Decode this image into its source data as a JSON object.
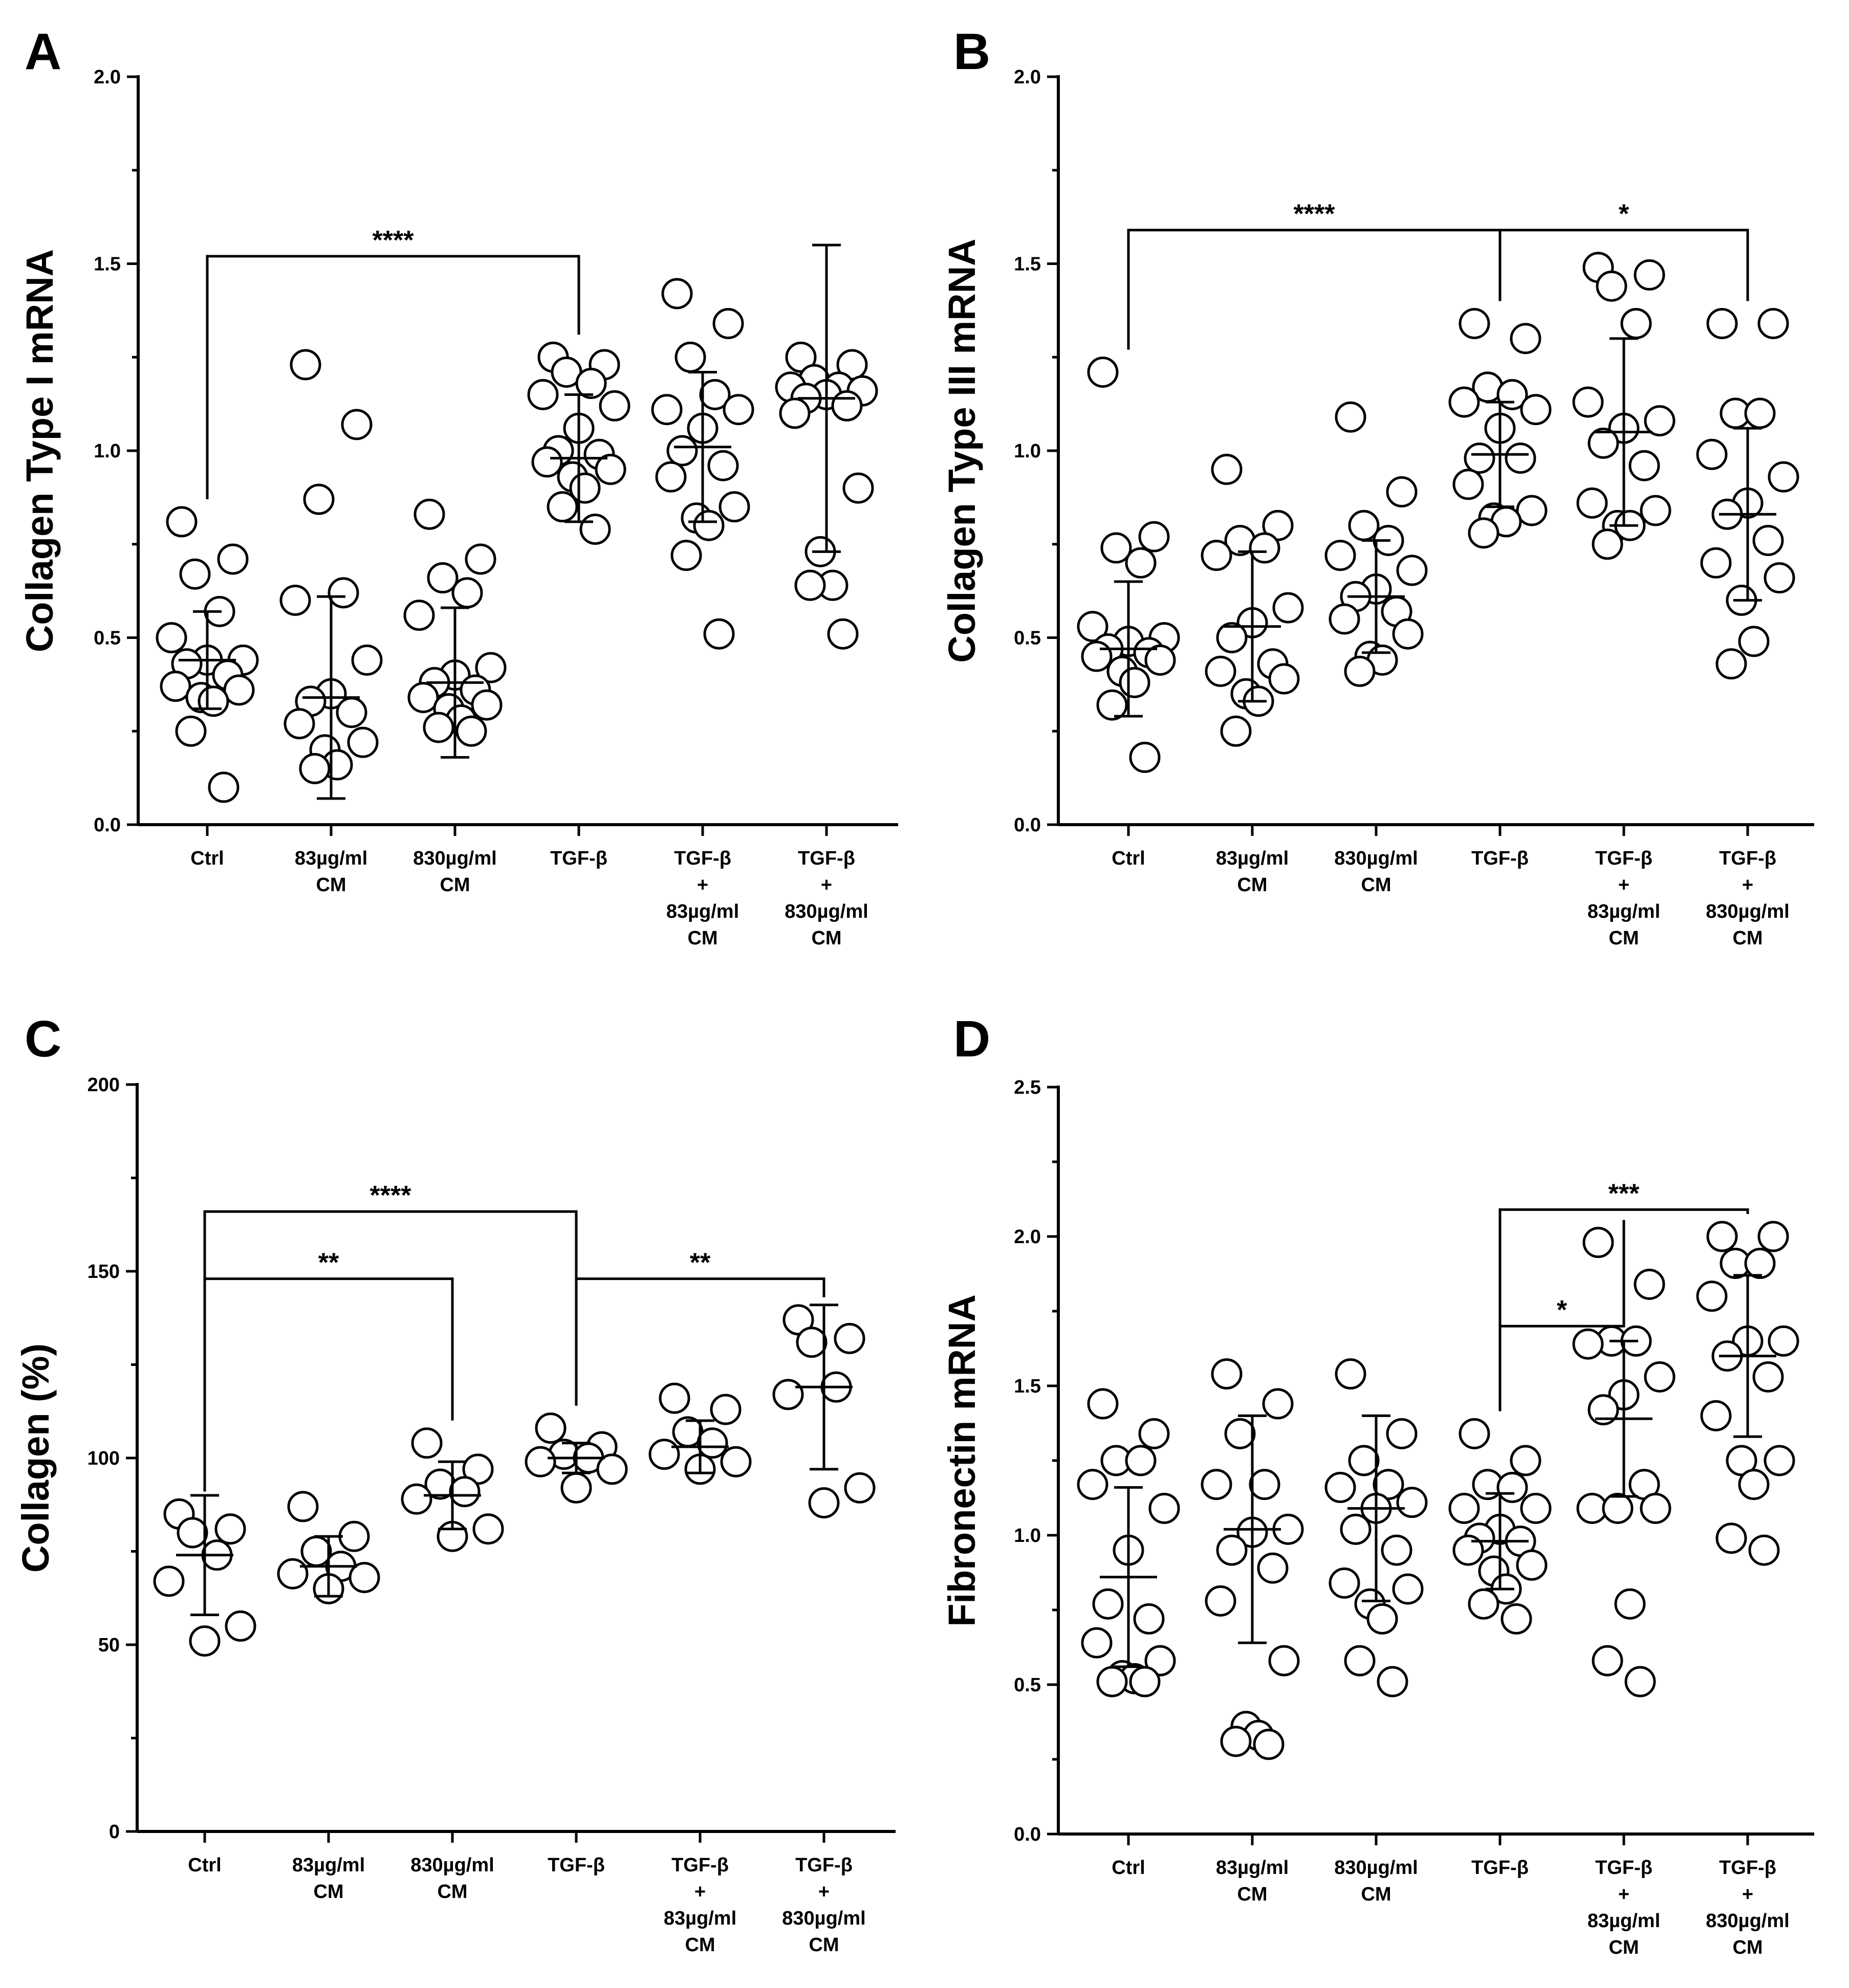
{
  "panel_labels": [
    "A",
    "B",
    "C",
    "D"
  ],
  "categories": [
    [
      "Ctrl"
    ],
    [
      "83µg/ml",
      "CM"
    ],
    [
      "830µg/ml",
      "CM"
    ],
    [
      "TGF-β"
    ],
    [
      "TGF-β",
      "+",
      "83µg/ml",
      "CM"
    ],
    [
      "TGF-β",
      "+",
      "830µg/ml",
      "CM"
    ]
  ],
  "chart_data": [
    {
      "panel": "A",
      "type": "scatter",
      "ylabel": "Collagen Type  I mRNA",
      "ylim": [
        0,
        2.0
      ],
      "yticks": [
        0,
        0.5,
        1.0,
        1.5,
        2.0
      ],
      "ytick_labels": [
        "0.0",
        "0.5",
        "1.0",
        "1.5",
        "2.0"
      ],
      "groups": [
        {
          "mean": 0.44,
          "sd": 0.13,
          "points": [
            0.81,
            0.71,
            0.67,
            0.57,
            0.5,
            0.44,
            0.44,
            0.43,
            0.4,
            0.37,
            0.36,
            0.34,
            0.33,
            0.25,
            0.1
          ]
        },
        {
          "mean": 0.34,
          "sd": 0.27,
          "points": [
            1.23,
            1.07,
            0.87,
            0.62,
            0.6,
            0.44,
            0.35,
            0.33,
            0.3,
            0.27,
            0.22,
            0.2,
            0.16,
            0.15
          ]
        },
        {
          "mean": 0.38,
          "sd": 0.2,
          "points": [
            0.83,
            0.71,
            0.66,
            0.62,
            0.56,
            0.42,
            0.4,
            0.38,
            0.36,
            0.34,
            0.32,
            0.31,
            0.28,
            0.26,
            0.25
          ]
        },
        {
          "mean": 0.98,
          "sd": 0.17,
          "points": [
            1.25,
            1.23,
            1.21,
            1.18,
            1.15,
            1.12,
            1.06,
            1.0,
            0.99,
            0.97,
            0.95,
            0.93,
            0.9,
            0.85,
            0.79
          ]
        },
        {
          "mean": 1.01,
          "sd": 0.2,
          "points": [
            1.42,
            1.34,
            1.25,
            1.15,
            1.11,
            1.11,
            1.06,
            1.0,
            0.96,
            0.93,
            0.85,
            0.82,
            0.8,
            0.72,
            0.51
          ]
        },
        {
          "mean": 1.14,
          "sd": 0.41,
          "points": [
            1.25,
            1.23,
            1.19,
            1.17,
            1.17,
            1.16,
            1.15,
            1.14,
            1.12,
            1.1,
            0.9,
            0.73,
            0.64,
            0.64,
            0.51
          ]
        }
      ],
      "brackets": [
        {
          "from": 0,
          "to": 3,
          "y": 1.52,
          "label": "****"
        }
      ]
    },
    {
      "panel": "B",
      "type": "scatter",
      "ylabel": "Collagen Type  III mRNA",
      "ylim": [
        0,
        2.0
      ],
      "yticks": [
        0,
        0.5,
        1.0,
        1.5,
        2.0
      ],
      "ytick_labels": [
        "0.0",
        "0.5",
        "1.0",
        "1.5",
        "2.0"
      ],
      "groups": [
        {
          "mean": 0.47,
          "sd": 0.18,
          "points": [
            1.21,
            0.77,
            0.74,
            0.7,
            0.53,
            0.5,
            0.49,
            0.47,
            0.46,
            0.45,
            0.44,
            0.41,
            0.38,
            0.32,
            0.18
          ]
        },
        {
          "mean": 0.53,
          "sd": 0.2,
          "points": [
            0.95,
            0.8,
            0.76,
            0.74,
            0.72,
            0.58,
            0.54,
            0.5,
            0.43,
            0.41,
            0.39,
            0.35,
            0.33,
            0.25
          ]
        },
        {
          "mean": 0.61,
          "sd": 0.15,
          "points": [
            1.09,
            0.89,
            0.8,
            0.76,
            0.72,
            0.68,
            0.63,
            0.61,
            0.57,
            0.55,
            0.51,
            0.45,
            0.44,
            0.41
          ]
        },
        {
          "mean": 0.99,
          "sd": 0.14,
          "points": [
            1.34,
            1.3,
            1.17,
            1.15,
            1.13,
            1.11,
            1.06,
            0.98,
            0.98,
            0.91,
            0.84,
            0.82,
            0.81,
            0.78
          ]
        },
        {
          "mean": 1.05,
          "sd": 0.25,
          "points": [
            1.49,
            1.47,
            1.44,
            1.34,
            1.13,
            1.08,
            1.06,
            1.02,
            0.96,
            0.86,
            0.84,
            0.8,
            0.8,
            0.75
          ]
        },
        {
          "mean": 0.83,
          "sd": 0.23,
          "points": [
            1.34,
            1.34,
            1.1,
            1.1,
            0.99,
            0.93,
            0.86,
            0.83,
            0.76,
            0.7,
            0.66,
            0.6,
            0.49,
            0.43
          ]
        }
      ],
      "brackets": [
        {
          "from": 0,
          "to": 3,
          "y": 1.59,
          "label": "****"
        },
        {
          "from": 3,
          "to": 5,
          "y": 1.59,
          "label": "*"
        }
      ]
    },
    {
      "panel": "C",
      "type": "scatter",
      "ylabel": "Collagen (%)",
      "ylim": [
        0,
        200
      ],
      "yticks": [
        0,
        50,
        100,
        150,
        200
      ],
      "ytick_labels": [
        "0",
        "50",
        "100",
        "150",
        "200"
      ],
      "groups": [
        {
          "mean": 74,
          "sd": 16,
          "points": [
            85,
            81,
            80,
            74,
            67,
            55,
            51
          ]
        },
        {
          "mean": 71,
          "sd": 8,
          "points": [
            87,
            79,
            75,
            71,
            69,
            68,
            65
          ]
        },
        {
          "mean": 90,
          "sd": 9,
          "points": [
            104,
            97,
            93,
            91,
            89,
            81,
            79
          ]
        },
        {
          "mean": 100,
          "sd": 4,
          "points": [
            108,
            103,
            101,
            100,
            99,
            97,
            92
          ]
        },
        {
          "mean": 103,
          "sd": 7,
          "points": [
            116,
            113,
            107,
            104,
            101,
            99,
            97
          ]
        },
        {
          "mean": 119,
          "sd": 22,
          "points": [
            137,
            132,
            131,
            119,
            117,
            92,
            88
          ]
        }
      ],
      "brackets": [
        {
          "from": 0,
          "to": 3,
          "y": 166,
          "label": "****"
        },
        {
          "from": 0,
          "to": 2,
          "y": 148,
          "label": "**"
        },
        {
          "from": 3,
          "to": 5,
          "y": 148,
          "label": "**"
        }
      ]
    },
    {
      "panel": "D",
      "type": "scatter",
      "ylabel": "Fibronectin mRNA",
      "ylim": [
        0,
        2.5
      ],
      "yticks": [
        0,
        0.5,
        1.0,
        1.5,
        2.0,
        2.5
      ],
      "ytick_labels": [
        "0.0",
        "0.5",
        "1.0",
        "1.5",
        "2.0",
        "2.5"
      ],
      "groups": [
        {
          "mean": 0.86,
          "sd": 0.3,
          "points": [
            1.44,
            1.34,
            1.25,
            1.25,
            1.17,
            1.09,
            0.95,
            0.77,
            0.72,
            0.64,
            0.58,
            0.53,
            0.52,
            0.51,
            0.51
          ]
        },
        {
          "mean": 1.02,
          "sd": 0.38,
          "points": [
            1.54,
            1.44,
            1.34,
            1.17,
            1.17,
            1.02,
            1.01,
            0.95,
            0.89,
            0.78,
            0.58,
            0.36,
            0.33,
            0.31,
            0.3
          ]
        },
        {
          "mean": 1.09,
          "sd": 0.31,
          "points": [
            1.54,
            1.34,
            1.25,
            1.17,
            1.16,
            1.11,
            1.09,
            1.02,
            0.95,
            0.84,
            0.82,
            0.77,
            0.72,
            0.58,
            0.51
          ]
        },
        {
          "mean": 0.98,
          "sd": 0.16,
          "points": [
            1.34,
            1.25,
            1.17,
            1.16,
            1.09,
            1.09,
            1.02,
            0.99,
            0.98,
            0.95,
            0.9,
            0.88,
            0.82,
            0.77,
            0.72
          ]
        },
        {
          "mean": 1.39,
          "sd": 0.26,
          "points": [
            1.98,
            1.84,
            1.65,
            1.65,
            1.64,
            1.53,
            1.47,
            1.42,
            1.17,
            1.09,
            1.09,
            1.09,
            0.77,
            0.58,
            0.51
          ]
        },
        {
          "mean": 1.6,
          "sd": 0.27,
          "points": [
            2.0,
            2.0,
            1.91,
            1.91,
            1.8,
            1.65,
            1.65,
            1.6,
            1.53,
            1.4,
            1.25,
            1.25,
            1.17,
            0.99,
            0.95
          ]
        }
      ],
      "brackets": [
        {
          "from": 3,
          "to": 4,
          "y": 1.7,
          "label": "*"
        },
        {
          "from": 3,
          "to": 5,
          "y": 2.09,
          "label": "***"
        }
      ]
    }
  ]
}
